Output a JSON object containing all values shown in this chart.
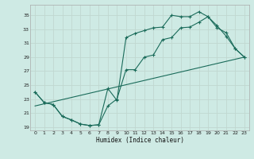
{
  "title": "",
  "xlabel": "Humidex (Indice chaleur)",
  "bg_color": "#ceeae4",
  "grid_color": "#c0d8d0",
  "line_color": "#1a6b5a",
  "xlim": [
    -0.5,
    23.5
  ],
  "ylim": [
    18.5,
    36.5
  ],
  "xticks": [
    0,
    1,
    2,
    3,
    4,
    5,
    6,
    7,
    8,
    9,
    10,
    11,
    12,
    13,
    14,
    15,
    16,
    17,
    18,
    19,
    20,
    21,
    22,
    23
  ],
  "yticks": [
    19,
    21,
    23,
    25,
    27,
    29,
    31,
    33,
    35
  ],
  "line1_x": [
    0,
    1,
    2,
    3,
    4,
    5,
    6,
    7,
    8,
    9,
    10,
    11,
    12,
    13,
    14,
    15,
    16,
    17,
    18,
    19,
    20,
    21,
    22,
    23
  ],
  "line1_y": [
    24.0,
    22.5,
    22.2,
    20.5,
    20.0,
    19.4,
    19.2,
    19.3,
    24.5,
    22.8,
    31.8,
    32.4,
    32.8,
    33.2,
    33.3,
    35.0,
    34.8,
    34.8,
    35.5,
    34.8,
    33.2,
    32.5,
    30.2,
    29.0
  ],
  "line2_x": [
    0,
    1,
    2,
    3,
    4,
    5,
    6,
    7,
    8,
    9,
    10,
    11,
    12,
    13,
    14,
    15,
    16,
    17,
    18,
    19,
    20,
    21,
    22,
    23
  ],
  "line2_y": [
    24.0,
    22.5,
    22.2,
    20.5,
    20.0,
    19.4,
    19.2,
    19.3,
    22.0,
    23.0,
    27.2,
    27.2,
    29.0,
    29.3,
    31.5,
    31.8,
    33.2,
    33.3,
    34.0,
    34.8,
    33.5,
    32.0,
    30.2,
    29.0
  ],
  "line3_x": [
    0,
    23
  ],
  "line3_y": [
    22.0,
    29.0
  ]
}
